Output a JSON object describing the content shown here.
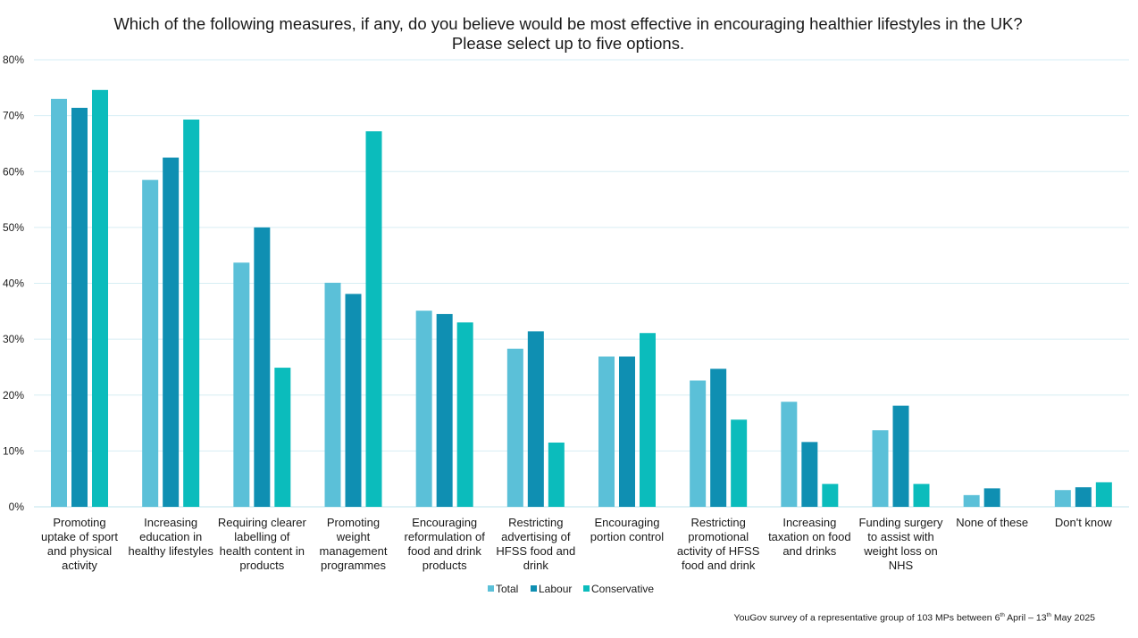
{
  "chart_data": {
    "type": "bar",
    "title": "Which of the following measures, if any, do you believe would be most effective in encouraging healthier lifestyles in the UK? Please select up to five options.",
    "ylim": [
      0,
      80
    ],
    "yticks": [
      0,
      10,
      20,
      30,
      40,
      50,
      60,
      70,
      80
    ],
    "ytick_suffix": "%",
    "grid": true,
    "legend_position": "bottom",
    "categories": [
      "Promoting uptake of sport and physical activity",
      "Increasing education in healthy lifestyles",
      "Requiring clearer labelling of health content in products",
      "Promoting weight management programmes",
      "Encouraging reformulation of food and drink products",
      "Restricting advertising of HFSS food and drink",
      "Encouraging portion control",
      "Restricting promotional activity of HFSS food and drink",
      "Increasing taxation on food and drinks",
      "Funding surgery to assist with weight loss on NHS",
      "None of these",
      "Don't know"
    ],
    "category_lines": [
      [
        "Promoting",
        "uptake of sport",
        "and physical",
        "activity"
      ],
      [
        "Increasing",
        "education in",
        "healthy lifestyles"
      ],
      [
        "Requiring clearer",
        "labelling of",
        "health content in",
        "products"
      ],
      [
        "Promoting",
        "weight",
        "management",
        "programmes"
      ],
      [
        "Encouraging",
        "reformulation of",
        "food and drink",
        "products"
      ],
      [
        "Restricting",
        "advertising of",
        "HFSS food and",
        "drink"
      ],
      [
        "Encouraging",
        "portion control"
      ],
      [
        "Restricting",
        "promotional",
        "activity of HFSS",
        "food and drink"
      ],
      [
        "Increasing",
        "taxation on food",
        "and drinks"
      ],
      [
        "Funding surgery",
        "to assist with",
        "weight loss on",
        "NHS"
      ],
      [
        "None of these"
      ],
      [
        "Don't know"
      ]
    ],
    "series": [
      {
        "name": "Total",
        "color": "#5bc0d8",
        "values": [
          73,
          58.5,
          43.7,
          40.1,
          35.1,
          28.3,
          26.9,
          22.6,
          18.8,
          13.7,
          2.1,
          3.0
        ]
      },
      {
        "name": "Labour",
        "color": "#0f8fb2",
        "values": [
          71.4,
          62.5,
          50.0,
          38.1,
          34.5,
          31.4,
          26.9,
          24.7,
          11.6,
          18.1,
          3.3,
          3.5
        ]
      },
      {
        "name": "Conservative",
        "color": "#0bbcbc",
        "values": [
          74.6,
          69.3,
          24.9,
          67.2,
          33.0,
          11.5,
          31.1,
          15.6,
          4.1,
          4.1,
          0,
          4.4
        ]
      }
    ]
  },
  "footnote": {
    "prefix": "YouGov survey of a representative group of 103 MPs between 6",
    "sup1": "th",
    "middle": " April – 13",
    "sup2": "th",
    "suffix": " May 2025"
  }
}
